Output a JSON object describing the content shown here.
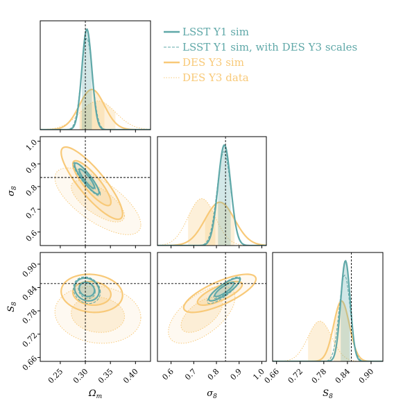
{
  "chart_data": {
    "type": "corner",
    "parameters": [
      {
        "key": "om",
        "label": "Ω",
        "sub": "m",
        "range": [
          0.21,
          0.43
        ],
        "ticks": [
          0.25,
          0.3,
          0.35,
          0.4
        ],
        "tick_labels": [
          "0.25",
          "0.30",
          "0.35",
          "0.40"
        ],
        "truth": 0.3
      },
      {
        "key": "s8",
        "label": "σ",
        "sub": "8",
        "range": [
          0.54,
          1.02
        ],
        "ticks": [
          0.6,
          0.7,
          0.8,
          0.9,
          1.0
        ],
        "tick_labels": [
          "0.6",
          "0.7",
          "0.8",
          "0.9",
          "1.0"
        ],
        "truth": 0.84
      },
      {
        "key": "S8",
        "label": "S",
        "sub": "8",
        "range": [
          0.65,
          0.93
        ],
        "ticks": [
          0.66,
          0.72,
          0.78,
          0.84,
          0.9
        ],
        "tick_labels": [
          "0.66",
          "0.72",
          "0.78",
          "0.84",
          "0.90"
        ],
        "truth": 0.85
      }
    ],
    "legend": [
      {
        "label": "LSST Y1 sim",
        "color": "#5fa8a8",
        "style": "solid"
      },
      {
        "label": "LSST Y1 sim, with DES Y3 scales",
        "color": "#5fa8a8",
        "style": "dashed"
      },
      {
        "label": "DES Y3 sim",
        "color": "#f8c978",
        "style": "solid"
      },
      {
        "label": "DES Y3 data",
        "color": "#f8c978",
        "style": "dotted"
      }
    ],
    "legend_position": "top-right",
    "series": [
      {
        "name": "LSST Y1 sim",
        "color": "#5fa8a8",
        "dash": "",
        "width": 2.2,
        "fill": true,
        "mean": {
          "om": 0.303,
          "s8": 0.835,
          "S8": 0.835
        },
        "sd": {
          "om": 0.01,
          "s8": 0.028,
          "S8": 0.012
        },
        "corr": {
          "om_s8": -0.9,
          "om_S8": -0.15,
          "s8_S8": 0.85
        }
      },
      {
        "name": "LSST Y1 sim, with DES Y3 scales",
        "color": "#5fa8a8",
        "dash": "4,2",
        "width": 1.1,
        "fill": false,
        "mean": {
          "om": 0.303,
          "s8": 0.833,
          "S8": 0.833
        },
        "sd": {
          "om": 0.011,
          "s8": 0.03,
          "S8": 0.014
        },
        "corr": {
          "om_s8": -0.9,
          "om_S8": -0.15,
          "s8_S8": 0.85
        }
      },
      {
        "name": "DES Y3 sim",
        "color": "#f8c978",
        "dash": "",
        "width": 2.2,
        "fill": true,
        "mean": {
          "om": 0.313,
          "s8": 0.815,
          "S8": 0.825
        },
        "sd": {
          "om": 0.025,
          "s8": 0.065,
          "S8": 0.02
        },
        "corr": {
          "om_s8": -0.85,
          "om_S8": -0.1,
          "s8_S8": 0.75
        }
      },
      {
        "name": "DES Y3 data",
        "color": "#f8c978",
        "dash": "1.5,2",
        "width": 1.0,
        "fill": true,
        "mean": {
          "om": 0.325,
          "s8": 0.735,
          "S8": 0.77
        },
        "sd": {
          "om": 0.035,
          "s8": 0.06,
          "S8": 0.03
        },
        "corr": {
          "om_s8": -0.7,
          "om_S8": -0.1,
          "s8_S8": 0.6
        }
      }
    ]
  }
}
